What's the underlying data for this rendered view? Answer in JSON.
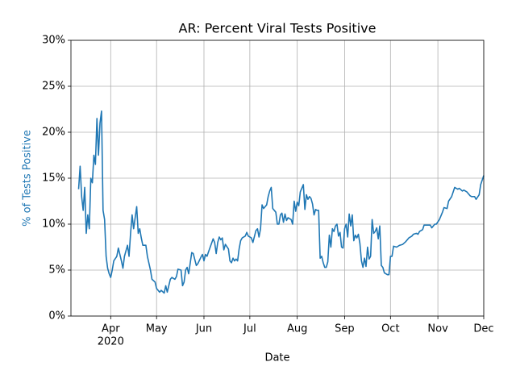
{
  "chart_data": {
    "type": "line",
    "title": "AR: Percent Viral Tests Positive",
    "x_label": "Date",
    "y_label": "% of Tests Positive",
    "x_year_label": "2020",
    "color": "#1f77b4",
    "grid": true,
    "xlim": [
      0,
      270
    ],
    "xticks": [
      {
        "value": 26,
        "label": "Apr"
      },
      {
        "value": 56,
        "label": "May"
      },
      {
        "value": 87,
        "label": "Jun"
      },
      {
        "value": 117,
        "label": "Jul"
      },
      {
        "value": 148,
        "label": "Aug"
      },
      {
        "value": 179,
        "label": "Sep"
      },
      {
        "value": 209,
        "label": "Oct"
      },
      {
        "value": 240,
        "label": "Nov"
      },
      {
        "value": 270,
        "label": "Dec"
      }
    ],
    "ylim": [
      0,
      30
    ],
    "yticks": [
      {
        "value": 0,
        "label": "0%"
      },
      {
        "value": 5,
        "label": "5%"
      },
      {
        "value": 10,
        "label": "10%"
      },
      {
        "value": 15,
        "label": "15%"
      },
      {
        "value": 20,
        "label": "20%"
      },
      {
        "value": 25,
        "label": "25%"
      },
      {
        "value": 30,
        "label": "30%"
      }
    ],
    "x": [
      5,
      6,
      7,
      8,
      9,
      10,
      11,
      12,
      13,
      14,
      15,
      16,
      17,
      18,
      19,
      20,
      21,
      22,
      23,
      24,
      25,
      26,
      27,
      28,
      30,
      31,
      33,
      34,
      35,
      37,
      38,
      39,
      40,
      41,
      43,
      44,
      45,
      46,
      47,
      49,
      50,
      52,
      53,
      55,
      56,
      58,
      59,
      61,
      62,
      63,
      65,
      66,
      68,
      69,
      70,
      72,
      73,
      74,
      75,
      76,
      77,
      79,
      80,
      82,
      83,
      85,
      86,
      87,
      88,
      89,
      90,
      93,
      94,
      95,
      96,
      97,
      98,
      99,
      100,
      101,
      103,
      104,
      105,
      106,
      107,
      108,
      109,
      110,
      111,
      112,
      114,
      115,
      116,
      118,
      119,
      121,
      122,
      123,
      124,
      125,
      126,
      128,
      129,
      130,
      131,
      132,
      134,
      135,
      136,
      137,
      138,
      139,
      140,
      141,
      142,
      144,
      145,
      146,
      147,
      148,
      149,
      150,
      152,
      153,
      154,
      155,
      156,
      157,
      158,
      159,
      160,
      161,
      162,
      163,
      164,
      165,
      166,
      167,
      168,
      169,
      170,
      171,
      172,
      173,
      174,
      175,
      176,
      177,
      178,
      179,
      180,
      181,
      182,
      183,
      184,
      185,
      186,
      187,
      188,
      189,
      190,
      191,
      192,
      193,
      194,
      195,
      196,
      197,
      198,
      199,
      200,
      201,
      202,
      203,
      204,
      205,
      206,
      207,
      208,
      209,
      210,
      211,
      213,
      215,
      217,
      219,
      221,
      223,
      224,
      226,
      227,
      228,
      230,
      231,
      233,
      235,
      236,
      238,
      239,
      241,
      243,
      244,
      246,
      247,
      249,
      250,
      251,
      253,
      254,
      256,
      257,
      259,
      261,
      262,
      264,
      265,
      267,
      268,
      270
    ],
    "values": [
      13.8,
      16.3,
      13,
      11.5,
      14,
      9,
      11,
      9.5,
      15,
      14.5,
      17.5,
      16.5,
      21.5,
      17.5,
      21,
      22.3,
      11.5,
      10.5,
      6.5,
      5.2,
      4.6,
      4.2,
      5,
      6,
      6.5,
      7.4,
      6,
      5.2,
      6.5,
      7.7,
      6.5,
      9,
      11,
      9.5,
      11.9,
      9,
      9.5,
      8.5,
      7.7,
      7.7,
      6.5,
      5,
      4,
      3.7,
      3,
      2.6,
      2.8,
      2.5,
      3.3,
      2.6,
      4,
      4.2,
      4,
      4.3,
      5.1,
      5,
      3.3,
      3.7,
      5,
      5.3,
      4.6,
      6.9,
      6.8,
      5.5,
      5.7,
      6.4,
      6.7,
      6,
      6.7,
      6.5,
      7,
      8.4,
      8,
      6.8,
      8,
      8.6,
      8.3,
      8.5,
      7.2,
      7.8,
      7.3,
      6,
      5.8,
      6.3,
      6,
      6.2,
      6,
      7.3,
      8.2,
      8.5,
      8.7,
      9.1,
      8.7,
      8.5,
      8,
      9.3,
      9.5,
      8.6,
      9.5,
      12.1,
      11.7,
      12.1,
      13,
      13.6,
      14,
      11.7,
      11.3,
      10,
      10,
      11,
      11.2,
      10.2,
      11.1,
      10.4,
      10.7,
      10.5,
      10,
      12.5,
      11.4,
      12.4,
      12,
      13.5,
      14.3,
      11.6,
      13.2,
      12.7,
      13,
      12.8,
      12.2,
      11,
      11.6,
      11.5,
      11.5,
      6.3,
      6.5,
      5.8,
      5.3,
      5.3,
      5.9,
      8.8,
      7.5,
      9.5,
      9.2,
      9.8,
      10,
      8.7,
      9.1,
      7.5,
      7.4,
      9.5,
      10,
      8.6,
      11.1,
      9.8,
      11,
      8.2,
      8.8,
      8.5,
      8.9,
      7.9,
      6,
      5.3,
      6.3,
      5.4,
      7.5,
      6.2,
      6.5,
      10.5,
      9,
      9.2,
      9.6,
      8.4,
      9.8,
      5.5,
      5.3,
      4.7,
      4.6,
      4.5,
      4.5,
      6.5,
      6.5,
      7.6,
      7.5,
      7.7,
      7.8,
      8.1,
      8.5,
      8.7,
      8.9,
      9,
      8.9,
      9.2,
      9.4,
      9.9,
      9.9,
      9.9,
      9.6,
      10,
      10,
      10.5,
      11.3,
      11.8,
      11.7,
      12.5,
      13,
      13.5,
      14,
      13.8,
      13.9,
      13.6,
      13.7,
      13.5,
      13.1,
      13,
      13,
      12.7,
      13.2,
      14.3,
      15.3
    ]
  }
}
